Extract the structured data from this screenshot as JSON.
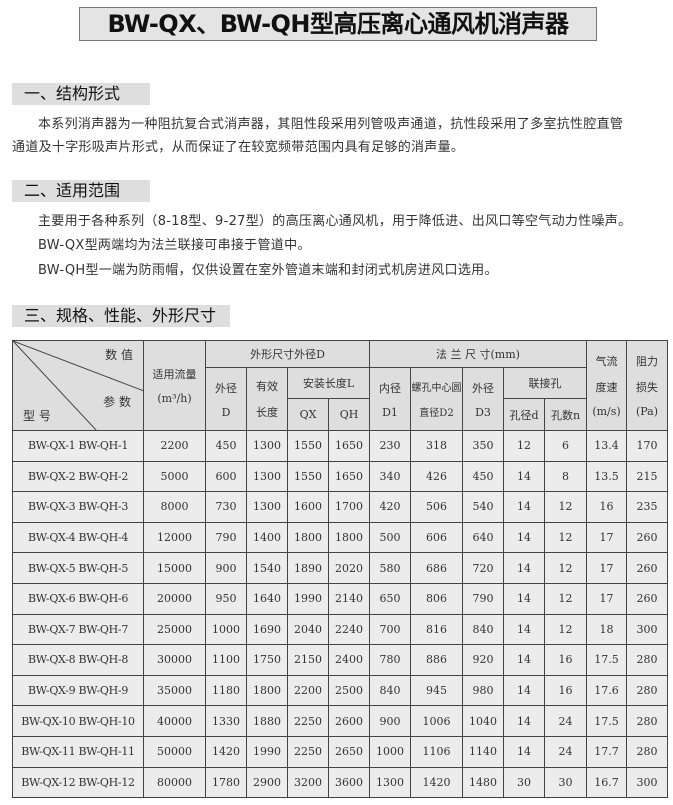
{
  "title": "BW-QX、BW-QH型高压离心通风机消声器",
  "sections": [
    {
      "heading": "一、结构形式",
      "lines": [
        "本系列消声器为一种阻抗复合式消声器，其阻性段采用列管吸声通道，抗性段采用了多室抗性腔直管",
        "通道及十字形吸声片形式，从而保证了在较宽频带范围内具有足够的消声量。"
      ]
    },
    {
      "heading": "二、适用范围",
      "lines": [
        "主要用于各种系列（8-18型、9-27型）的高压离心通风机，用于降低进、出风口等空气动力性噪声。",
        "BW-QX型两端均为法兰联接可串接于管道中。",
        "BW-QH型一端为防雨帽，仅供设置在室外管道末端和封闭式机房进风口选用。"
      ]
    },
    {
      "heading": "三、规格、性能、外形尺寸"
    }
  ],
  "table": {
    "corner": {
      "top": "数 值",
      "middle": "参 数",
      "bottom": "型 号"
    },
    "flow": [
      "适用流量",
      "(m³/h)"
    ],
    "outer_group": "外形尺寸外径D",
    "flange_group": "法 兰 尺 寸(mm)",
    "speed": [
      "气流",
      "度速",
      "(m/s)"
    ],
    "loss": [
      "阻力",
      "损失",
      "(Pa)"
    ],
    "outer_d": [
      "外径",
      "D"
    ],
    "eff_len": [
      "有效",
      "长度"
    ],
    "install_len": "安装长度L",
    "qx": "QX",
    "qh": "QH",
    "d1": [
      "内径",
      "D1"
    ],
    "d2": [
      "螺孔中心圆",
      "直径D2"
    ],
    "d3": [
      "外径",
      "D3"
    ],
    "holes": "联接孔",
    "hole_d": "孔径d",
    "hole_n": "孔数n",
    "rows": [
      [
        "BW-QX-1 BW-QH-1",
        "2200",
        "450",
        "1300",
        "1550",
        "1650",
        "230",
        "318",
        "350",
        "12",
        "6",
        "13.4",
        "170"
      ],
      [
        "BW-QX-2 BW-QH-2",
        "5000",
        "600",
        "1300",
        "1550",
        "1650",
        "340",
        "426",
        "450",
        "14",
        "8",
        "13.5",
        "215"
      ],
      [
        "BW-QX-3 BW-QH-3",
        "8000",
        "730",
        "1300",
        "1600",
        "1700",
        "420",
        "506",
        "540",
        "14",
        "12",
        "16",
        "235"
      ],
      [
        "BW-QX-4 BW-QH-4",
        "12000",
        "790",
        "1400",
        "1800",
        "1800",
        "500",
        "606",
        "640",
        "14",
        "12",
        "17",
        "260"
      ],
      [
        "BW-QX-5 BW-QH-5",
        "15000",
        "900",
        "1540",
        "1890",
        "2020",
        "580",
        "686",
        "720",
        "14",
        "12",
        "17",
        "260"
      ],
      [
        "BW-QX-6 BW-QH-6",
        "20000",
        "950",
        "1640",
        "1990",
        "2140",
        "650",
        "806",
        "790",
        "14",
        "12",
        "17",
        "260"
      ],
      [
        "BW-QX-7 BW-QH-7",
        "25000",
        "1000",
        "1690",
        "2040",
        "2240",
        "700",
        "816",
        "840",
        "14",
        "12",
        "18",
        "300"
      ],
      [
        "BW-QX-8 BW-QH-8",
        "30000",
        "1100",
        "1750",
        "2150",
        "2400",
        "780",
        "886",
        "920",
        "14",
        "16",
        "17.5",
        "280"
      ],
      [
        "BW-QX-9 BW-QH-9",
        "35000",
        "1180",
        "1800",
        "2200",
        "2500",
        "840",
        "945",
        "980",
        "14",
        "16",
        "17.6",
        "280"
      ],
      [
        "BW-QX-10 BW-QH-10",
        "40000",
        "1330",
        "1880",
        "2250",
        "2600",
        "900",
        "1006",
        "1040",
        "14",
        "24",
        "17.5",
        "280"
      ],
      [
        "BW-QX-11 BW-QH-11",
        "50000",
        "1420",
        "1990",
        "2250",
        "2650",
        "1000",
        "1106",
        "1140",
        "14",
        "24",
        "17.7",
        "280"
      ],
      [
        "BW-QX-12 BW-QH-12",
        "80000",
        "1780",
        "2900",
        "3200",
        "3600",
        "1300",
        "1420",
        "1480",
        "30",
        "30",
        "16.7",
        "300"
      ]
    ]
  }
}
